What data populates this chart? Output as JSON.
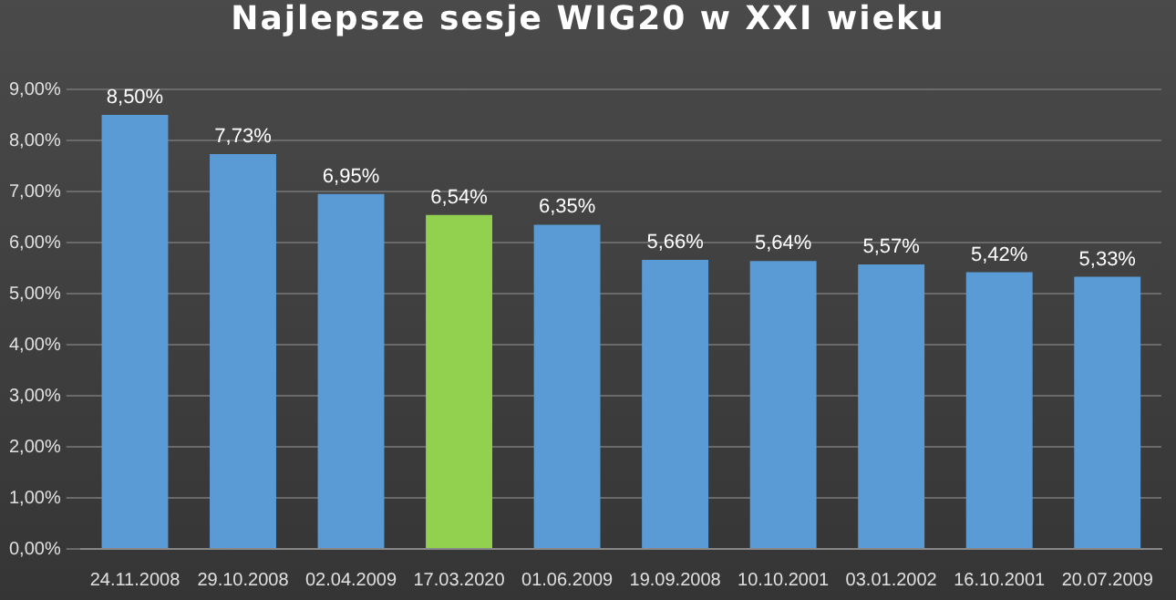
{
  "chart_data": {
    "type": "bar",
    "title": "Najlepsze sesje WIG20 w XXI wieku",
    "categories": [
      "24.11.2008",
      "29.10.2008",
      "02.04.2009",
      "17.03.2020",
      "01.06.2009",
      "19.09.2008",
      "10.10.2001",
      "03.01.2002",
      "16.10.2001",
      "20.07.2009"
    ],
    "values": [
      8.5,
      7.73,
      6.95,
      6.54,
      6.35,
      5.66,
      5.64,
      5.57,
      5.42,
      5.33
    ],
    "value_labels": [
      "8,50%",
      "7,73%",
      "6,95%",
      "6,54%",
      "6,35%",
      "5,66%",
      "5,64%",
      "5,57%",
      "5,42%",
      "5,33%"
    ],
    "colors": [
      "#5b9bd5",
      "#5b9bd5",
      "#5b9bd5",
      "#92d050",
      "#5b9bd5",
      "#5b9bd5",
      "#5b9bd5",
      "#5b9bd5",
      "#5b9bd5",
      "#5b9bd5"
    ],
    "ylim": [
      0,
      9
    ],
    "yticks": [
      {
        "value": 0,
        "label": "0,00%"
      },
      {
        "value": 1,
        "label": "1,00%"
      },
      {
        "value": 2,
        "label": "2,00%"
      },
      {
        "value": 3,
        "label": "3,00%"
      },
      {
        "value": 4,
        "label": "4,00%"
      },
      {
        "value": 5,
        "label": "5,00%"
      },
      {
        "value": 6,
        "label": "6,00%"
      },
      {
        "value": 7,
        "label": "7,00%"
      },
      {
        "value": 8,
        "label": "8,00%"
      },
      {
        "value": 9,
        "label": "9,00%"
      }
    ],
    "grid": "y",
    "legend": false
  }
}
